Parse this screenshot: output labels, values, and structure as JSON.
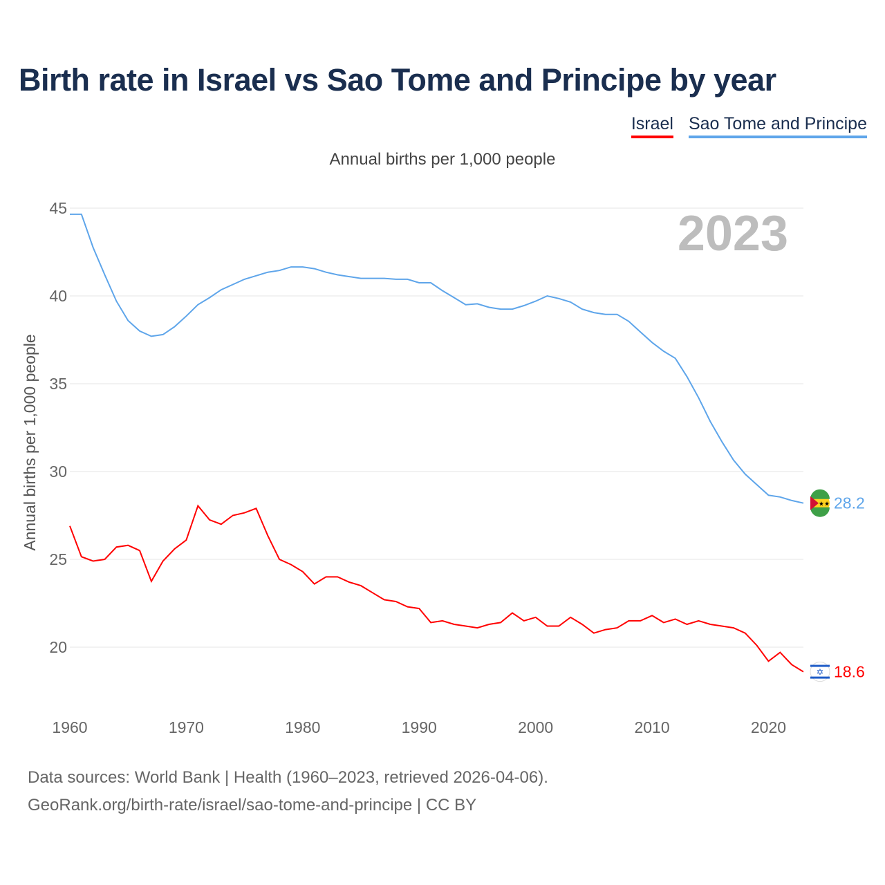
{
  "title": "Birth rate in Israel vs Sao Tome and Principe by year",
  "footer": {
    "line1": "Data sources: World Bank | Health (1960–2023, retrieved 2026-04-06).",
    "line2": "GeoRank.org/birth-rate/israel/sao-tome-and-principe | CC BY"
  },
  "chart_data": {
    "type": "line",
    "title": "Birth rate in Israel vs Sao Tome and Principe by year",
    "subtitle": "Annual births per 1,000 people",
    "xlabel": "",
    "ylabel": "Annual births per 1,000 people",
    "year_label": "2023",
    "xlim": [
      1960,
      2023
    ],
    "ylim": [
      17,
      45
    ],
    "yticks": [
      "20",
      "25",
      "30",
      "35",
      "40",
      "45"
    ],
    "xticks": [
      "1960",
      "1970",
      "1980",
      "1990",
      "2000",
      "2010",
      "2020"
    ],
    "grid": true,
    "legend_position": "top-right",
    "x_start": 1960,
    "series": [
      {
        "name": "Israel",
        "color": "#ff0000",
        "end_label": "18.6",
        "flag_icon": "israel-flag",
        "values": [
          26.9,
          25.15,
          24.9,
          25.0,
          25.7,
          25.8,
          25.5,
          23.75,
          24.9,
          25.6,
          26.1,
          28.05,
          27.25,
          27.0,
          27.5,
          27.65,
          27.9,
          26.35,
          25.0,
          24.7,
          24.3,
          23.6,
          24.0,
          24.0,
          23.7,
          23.5,
          23.1,
          22.7,
          22.6,
          22.3,
          22.2,
          21.4,
          21.5,
          21.3,
          21.2,
          21.1,
          21.3,
          21.4,
          21.95,
          21.5,
          21.7,
          21.2,
          21.2,
          21.7,
          21.3,
          20.8,
          21.0,
          21.1,
          21.5,
          21.5,
          21.8,
          21.4,
          21.6,
          21.3,
          21.5,
          21.3,
          21.2,
          21.1,
          20.8,
          20.1,
          19.2,
          19.7,
          19.0,
          18.6
        ]
      },
      {
        "name": "Sao Tome and Principe",
        "color": "#5ea5ea",
        "end_label": "28.2",
        "flag_icon": "sao-tome-flag",
        "values": [
          44.65,
          44.65,
          42.75,
          41.2,
          39.7,
          38.6,
          38.0,
          37.7,
          37.8,
          38.25,
          38.85,
          39.5,
          39.9,
          40.35,
          40.65,
          40.95,
          41.15,
          41.35,
          41.45,
          41.65,
          41.65,
          41.55,
          41.35,
          41.2,
          41.1,
          41.0,
          41.0,
          41.0,
          40.95,
          40.95,
          40.75,
          40.75,
          40.3,
          39.9,
          39.5,
          39.55,
          39.35,
          39.25,
          39.25,
          39.45,
          39.7,
          40.0,
          39.85,
          39.65,
          39.25,
          39.05,
          38.95,
          38.95,
          38.55,
          37.95,
          37.35,
          36.85,
          36.45,
          35.4,
          34.2,
          32.85,
          31.7,
          30.65,
          29.85,
          29.25,
          28.65,
          28.55,
          28.35,
          28.2
        ]
      }
    ]
  }
}
